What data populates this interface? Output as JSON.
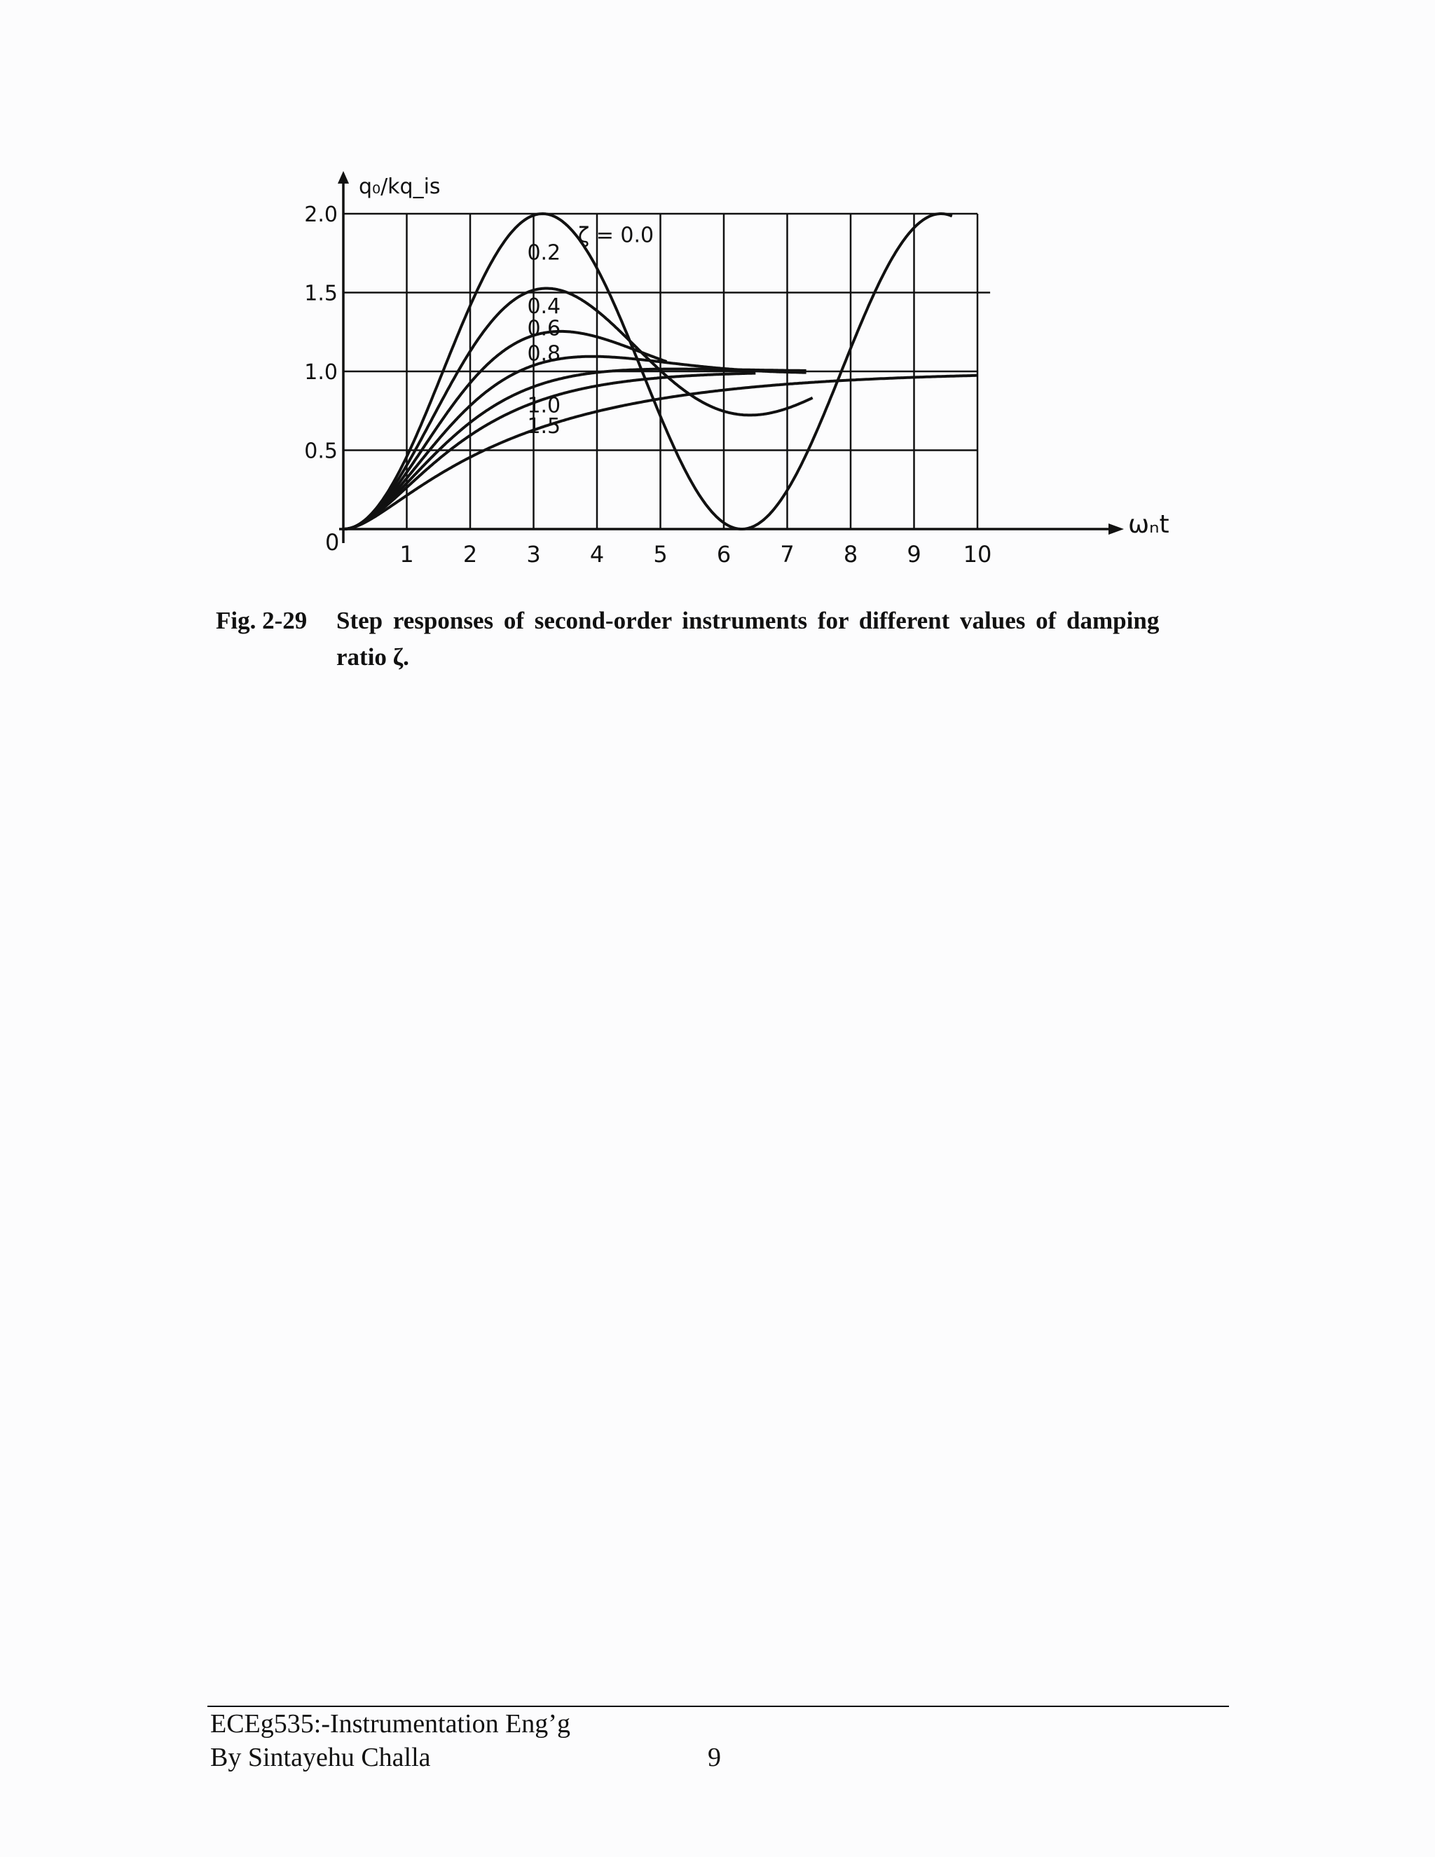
{
  "chart_data": {
    "type": "line",
    "ylabel": "q₀/kq_is",
    "xlabel": "ωₙt",
    "origin_label": "0",
    "xlim": [
      0,
      10
    ],
    "ylim": [
      0,
      2.0
    ],
    "x_ticks": [
      "1",
      "2",
      "3",
      "4",
      "5",
      "6",
      "7",
      "8",
      "9",
      "10"
    ],
    "y_ticks": [
      "2.0",
      "1.5",
      "1.0",
      "0.5"
    ],
    "grid": true,
    "series": [
      {
        "name": "ζ = 0.0",
        "label": "ζ = 0.0",
        "zeta": 0.0,
        "x_end": 9.6
      },
      {
        "name": "0.2",
        "label": "0.2",
        "zeta": 0.2,
        "x_end": 7.4
      },
      {
        "name": "0.4",
        "label": "0.4",
        "zeta": 0.4,
        "x_end": 5.1
      },
      {
        "name": "0.6",
        "label": "0.6",
        "zeta": 0.6,
        "x_end": 7.3
      },
      {
        "name": "0.8",
        "label": "0.8",
        "zeta": 0.8,
        "x_end": 7.3
      },
      {
        "name": "1.0",
        "label": "1.0",
        "zeta": 1.0,
        "x_end": 6.5
      },
      {
        "name": "1.5",
        "label": "1.5",
        "zeta": 1.5,
        "x_end": 10.0
      }
    ]
  },
  "caption": {
    "label": "Fig. 2-29",
    "text_line1": "Step  responses  of  second-order instruments for different values of damping",
    "text_line2": "ratio ζ."
  },
  "footer": {
    "course": "ECEg535:-Instrumentation Eng’g",
    "author": "By Sintayehu Challa",
    "page_number": "9"
  }
}
